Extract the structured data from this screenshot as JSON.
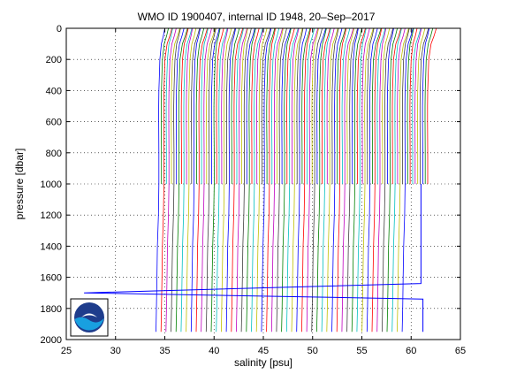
{
  "chart_data": {
    "type": "line",
    "title": "WMO ID 1900407, internal ID 1948, 20–Sep–2017",
    "xlabel": "salinity [psu]",
    "ylabel": "pressure [dbar]",
    "xlim": [
      25,
      65
    ],
    "ylim": [
      2000,
      0
    ],
    "y_reversed": true,
    "xticks": [
      25,
      30,
      35,
      40,
      45,
      50,
      55,
      60,
      65
    ],
    "yticks": [
      0,
      200,
      400,
      600,
      800,
      1000,
      1200,
      1400,
      1600,
      1800,
      2000
    ],
    "grid": true,
    "grid_style": "dotted",
    "logo": "NOAA",
    "description_of_series": "Many salinity profiles, each offset horizontally by about 0.25 psu",
    "profile_colors": [
      "#0000ff",
      "#008000",
      "#ff0000",
      "#00bfbf",
      "#bf00bf",
      "#bfbf00",
      "#404040"
    ],
    "profile_count": 108,
    "first_offset": 34.5,
    "offset_step": 0.255,
    "profile_shape": {
      "pressure": [
        0,
        50,
        100,
        200,
        300,
        400,
        500,
        600,
        800,
        1000
      ],
      "salinity_delta": [
        0.5,
        0.35,
        0.15,
        0.0,
        -0.05,
        -0.1,
        -0.12,
        -0.12,
        -0.1,
        -0.1
      ]
    },
    "deep_profiles": {
      "count": 50,
      "start_index": 0,
      "stride": 2,
      "pressure": [
        1000,
        1200,
        1400,
        1600,
        1800,
        1950
      ],
      "salinity_delta": [
        -0.1,
        -0.15,
        -0.25,
        -0.3,
        -0.35,
        -0.4
      ]
    },
    "outlier_line": {
      "color": "#0000ff",
      "points": [
        [
          61.0,
          1000
        ],
        [
          61.0,
          1640
        ],
        [
          26.8,
          1700
        ],
        [
          61.2,
          1740
        ],
        [
          61.2,
          1950
        ]
      ]
    }
  }
}
